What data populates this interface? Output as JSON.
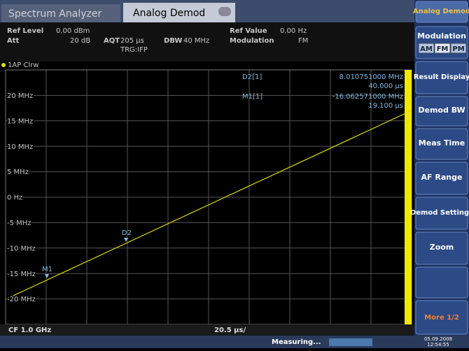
{
  "tabs": [
    "Spectrum Analyzer",
    "Analog Demod"
  ],
  "header": {
    "ref_level_label": "Ref Level",
    "ref_level": "0.00 dBm",
    "att_label": "Att",
    "att": "20 dB",
    "aqt_label": "AQT",
    "aqt": "205 µs",
    "dbw_label": "DBW",
    "dbw": "40 MHz",
    "trigger": "TRG:IFP",
    "ref_value_label": "Ref Value",
    "ref_value": "0.00 Hz",
    "modulation_label": "Modulation",
    "modulation": "FM"
  },
  "trace_label": "1AP Clrw",
  "y_labels": [
    "20 MHz",
    "15 MHz",
    "10 MHz",
    "5 MHz",
    "0 Hz",
    "-5 MHz",
    "-10 MHz",
    "-15 MHz",
    "-20 MHz"
  ],
  "markers": [
    {
      "name": "D2[1]",
      "value": "8.010751000 MHz",
      "time": "40.000 µs",
      "label": "D2"
    },
    {
      "name": "M1[1]",
      "value": "-16.062571000 MHz",
      "time": "19.100 µs",
      "label": "M1"
    }
  ],
  "footer": {
    "cf": "CF 1.0 GHz",
    "div": "20.5 µs/"
  },
  "status": {
    "state": "Measuring...",
    "date": "05.09.2008",
    "time": "12:54:55"
  },
  "softkeys": [
    "Analog Demod",
    "Modulation",
    "Result Display",
    "Demod BW",
    "Meas Time",
    "AF Range",
    "Demod Settings",
    "Zoom",
    "More 1/2"
  ],
  "modulation_options": [
    "AM",
    "FM",
    "PM"
  ]
}
